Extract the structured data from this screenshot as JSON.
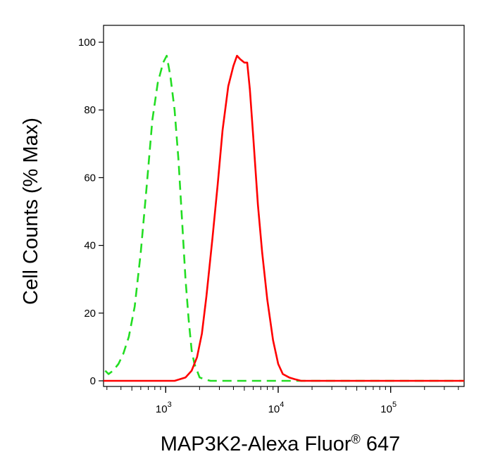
{
  "chart_data": {
    "type": "line",
    "title": "",
    "xlabel": "MAP3K2-Alexa Fluor",
    "xlabel_mark": "®",
    "xlabel_suffix": " 647",
    "ylabel": "Cell Counts (% Max)",
    "x_scale": "log",
    "xlim": [
      280,
      450000
    ],
    "ylim": [
      0,
      100
    ],
    "x_ticks": [
      {
        "base": "10",
        "exp": "3",
        "value": 1000
      },
      {
        "base": "10",
        "exp": "4",
        "value": 10000
      },
      {
        "base": "10",
        "exp": "5",
        "value": 100000
      }
    ],
    "y_ticks": [
      "0",
      "20",
      "40",
      "60",
      "80",
      "100"
    ],
    "grid": false,
    "legend": "none",
    "series": [
      {
        "color": "#22dd22",
        "style": "dashed",
        "x": [
          290,
          310,
          340,
          380,
          420,
          470,
          530,
          600,
          680,
          760,
          850,
          950,
          1020,
          1100,
          1200,
          1300,
          1400,
          1500,
          1600,
          1700,
          1800,
          1900,
          2000,
          2200,
          2500,
          3000,
          4000,
          6000,
          10000,
          30000,
          450000
        ],
        "y": [
          3,
          2,
          3,
          5,
          8,
          13,
          22,
          38,
          58,
          77,
          88,
          94,
          96,
          90,
          80,
          65,
          47,
          30,
          18,
          9,
          5,
          3,
          1,
          0.5,
          0,
          0,
          0,
          0,
          0,
          0,
          0
        ]
      },
      {
        "color": "#ff0000",
        "style": "solid",
        "x": [
          280,
          900,
          1200,
          1500,
          1700,
          1900,
          2100,
          2300,
          2600,
          2900,
          3200,
          3600,
          4000,
          4300,
          4600,
          5000,
          5300,
          5600,
          6000,
          6600,
          7200,
          8000,
          9000,
          10000,
          11000,
          12500,
          14000,
          16000,
          20000,
          30000,
          450000
        ],
        "y": [
          0,
          0,
          0,
          1,
          3,
          7,
          14,
          25,
          42,
          58,
          74,
          87,
          93,
          96,
          95,
          94,
          94,
          86,
          72,
          52,
          38,
          24,
          12,
          5,
          2,
          1,
          0.5,
          0,
          0,
          0,
          0
        ]
      }
    ]
  }
}
